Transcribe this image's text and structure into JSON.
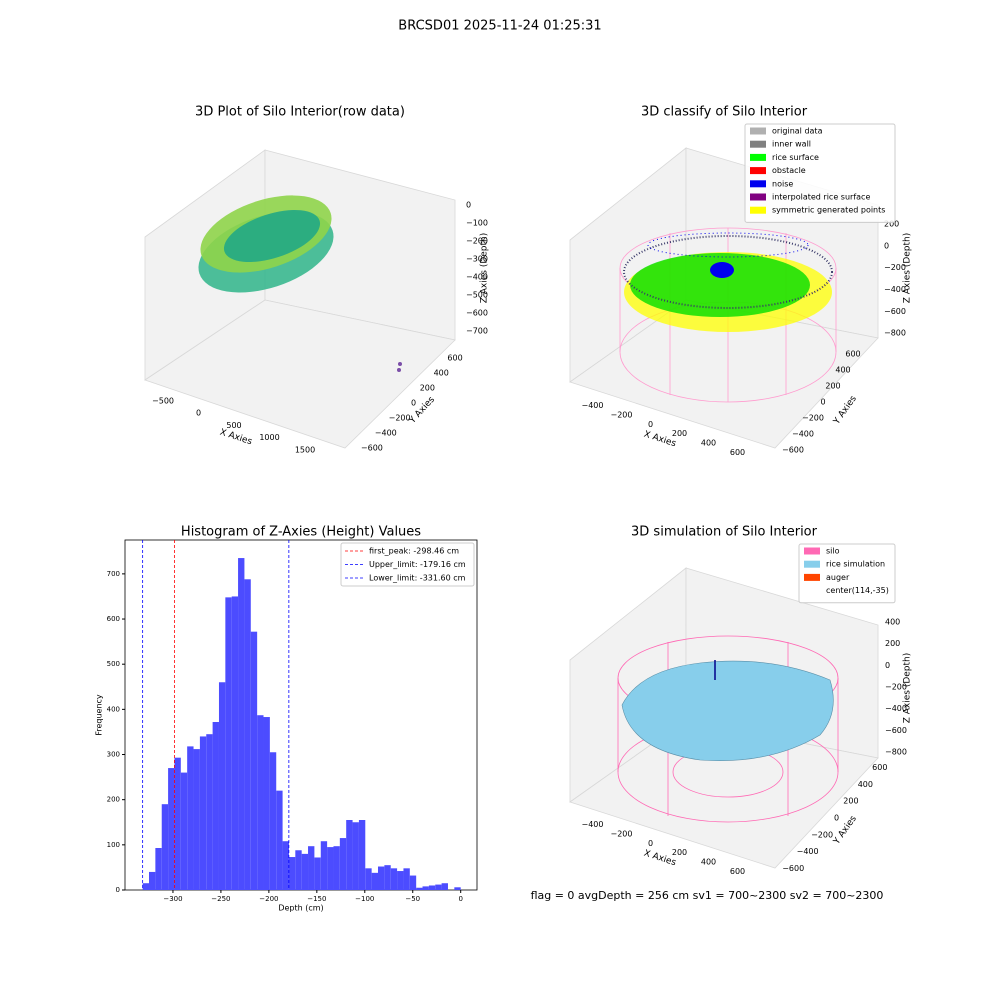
{
  "title": "BRCSD01 2025-11-24 01:25:31",
  "footer": "flag = 0     avgDepth = 256 cm  sv1 = 700~2300  sv2 = 700~2300",
  "chart_data": [
    {
      "type": "scatter3d",
      "title": "3D Plot of Silo Interior(row data)",
      "xlabel": "X Axies",
      "ylabel": "Y Axies",
      "zlabel": "Z Axies (Depth)",
      "xlim": [
        -650,
        1900
      ],
      "ylim": [
        -700,
        700
      ],
      "zlim": [
        -750,
        50
      ],
      "xticks": [
        {
          "value": -500,
          "label": "−500"
        },
        0,
        500,
        1000,
        1500
      ],
      "yticks": [
        {
          "value": -600,
          "label": "−600"
        },
        {
          "value": -400,
          "label": "−400"
        },
        {
          "value": -200,
          "label": "−200"
        },
        0,
        200,
        400,
        600
      ],
      "zticks": [
        0,
        {
          "value": -100,
          "label": "−100"
        },
        {
          "value": -200,
          "label": "−200"
        },
        {
          "value": -300,
          "label": "−300"
        },
        {
          "value": -400,
          "label": "−400"
        },
        {
          "value": -500,
          "label": "−500"
        },
        {
          "value": -600,
          "label": "−600"
        },
        {
          "value": -700,
          "label": "−700"
        }
      ]
    },
    {
      "type": "scatter3d",
      "title": "3D classify of Silo Interior",
      "xlabel": "X Axies",
      "ylabel": "Y Axies",
      "zlabel": "Z Axies (Depth)",
      "xlim": [
        -500,
        700
      ],
      "ylim": [
        -700,
        700
      ],
      "zlim": [
        -900,
        300
      ],
      "xticks": [
        {
          "value": -400,
          "label": "−400"
        },
        {
          "value": -200,
          "label": "−200"
        },
        0,
        200,
        400,
        600
      ],
      "yticks": [
        {
          "value": -600,
          "label": "−600"
        },
        {
          "value": -400,
          "label": "−400"
        },
        {
          "value": -200,
          "label": "−200"
        },
        0,
        200,
        400,
        600
      ],
      "zticks": [
        200,
        0,
        {
          "value": -200,
          "label": "−200"
        },
        {
          "value": -400,
          "label": "−400"
        },
        {
          "value": -600,
          "label": "−600"
        },
        {
          "value": -800,
          "label": "−800"
        }
      ],
      "legend": [
        {
          "name": "original data",
          "color": "#b0b0b0"
        },
        {
          "name": "inner wall",
          "color": "#808080"
        },
        {
          "name": "rice surface",
          "color": "#00ff00"
        },
        {
          "name": "obstacle",
          "color": "#ff0000"
        },
        {
          "name": "noise",
          "color": "#0000ee"
        },
        {
          "name": "interpolated rice surface",
          "color": "#800080"
        },
        {
          "name": "symmetric generated points",
          "color": "#ffff00"
        }
      ]
    },
    {
      "type": "histogram",
      "title": "Histogram of Z-Axies (Height) Values",
      "xlabel": "Depth (cm)",
      "ylabel": "Frequency",
      "color": "#4c4cff",
      "bins": [
        -331.6,
        -324.97,
        -318.34,
        -311.7,
        -305.07,
        -298.44,
        -291.81,
        -285.18,
        -278.54,
        -271.91,
        -265.28,
        -258.65,
        -252.02,
        -245.38,
        -238.75,
        -232.12,
        -225.49,
        -218.86,
        -212.22,
        -205.59,
        -198.96,
        -192.33,
        -185.7,
        -179.06,
        -172.43,
        -165.8,
        -159.17,
        -152.54,
        -145.9,
        -139.27,
        -132.64,
        -126.01,
        -119.38,
        -112.74,
        -106.11,
        -99.48,
        -92.85,
        -86.22,
        -79.58,
        -72.95,
        -66.32,
        -59.69,
        -53.06,
        -46.42,
        -39.79,
        -33.16,
        -26.53,
        -19.9,
        -13.26,
        -6.63,
        0
      ],
      "values": [
        15,
        40,
        93,
        190,
        270,
        293,
        260,
        318,
        312,
        340,
        345,
        372,
        460,
        648,
        650,
        735,
        688,
        572,
        387,
        383,
        305,
        220,
        108,
        73,
        88,
        80,
        97,
        72,
        108,
        95,
        97,
        115,
        155,
        150,
        155,
        48,
        38,
        52,
        55,
        48,
        42,
        48,
        32,
        5,
        8,
        10,
        12,
        15,
        0,
        6
      ],
      "xlim": [
        -350,
        17
      ],
      "ylim": [
        0,
        775
      ],
      "xticks": [
        {
          "value": -300,
          "label": "−300"
        },
        {
          "value": -250,
          "label": "−250"
        },
        {
          "value": -200,
          "label": "−200"
        },
        {
          "value": -150,
          "label": "−150"
        },
        {
          "value": -100,
          "label": "−100"
        },
        {
          "value": -50,
          "label": "−50"
        },
        0
      ],
      "yticks": [
        0,
        100,
        200,
        300,
        400,
        500,
        600,
        700
      ],
      "lines": [
        {
          "name": "first_peak: -298.46 cm",
          "value": -298.46,
          "color": "#ff0000"
        },
        {
          "name": "Upper_limit: -179.16 cm",
          "value": -179.16,
          "color": "#0000ff"
        },
        {
          "name": "Lower_limit: -331.60 cm",
          "value": -331.6,
          "color": "#0000ff"
        }
      ]
    },
    {
      "type": "surface3d",
      "title": "3D simulation of Silo Interior",
      "xlabel": "X Axies",
      "ylabel": "Y Axies",
      "zlabel": "Z Axies (Depth)",
      "xlim": [
        -500,
        700
      ],
      "ylim": [
        -700,
        700
      ],
      "zlim": [
        -900,
        500
      ],
      "xticks": [
        {
          "value": -400,
          "label": "−400"
        },
        {
          "value": -200,
          "label": "−200"
        },
        0,
        200,
        400,
        600
      ],
      "yticks": [
        {
          "value": -600,
          "label": "−600"
        },
        {
          "value": -400,
          "label": "−400"
        },
        {
          "value": -200,
          "label": "−200"
        },
        0,
        200,
        400,
        600
      ],
      "zticks": [
        400,
        200,
        0,
        {
          "value": -200,
          "label": "−200"
        },
        {
          "value": -400,
          "label": "−400"
        },
        {
          "value": -600,
          "label": "−600"
        },
        {
          "value": -800,
          "label": "−800"
        }
      ],
      "legend": [
        {
          "name": "silo",
          "color": "#ff69b4"
        },
        {
          "name": "rice simulation",
          "color": "#87ceeb"
        },
        {
          "name": "auger",
          "color": "#ff4500"
        },
        {
          "name": "center(114,-35)"
        }
      ]
    }
  ]
}
